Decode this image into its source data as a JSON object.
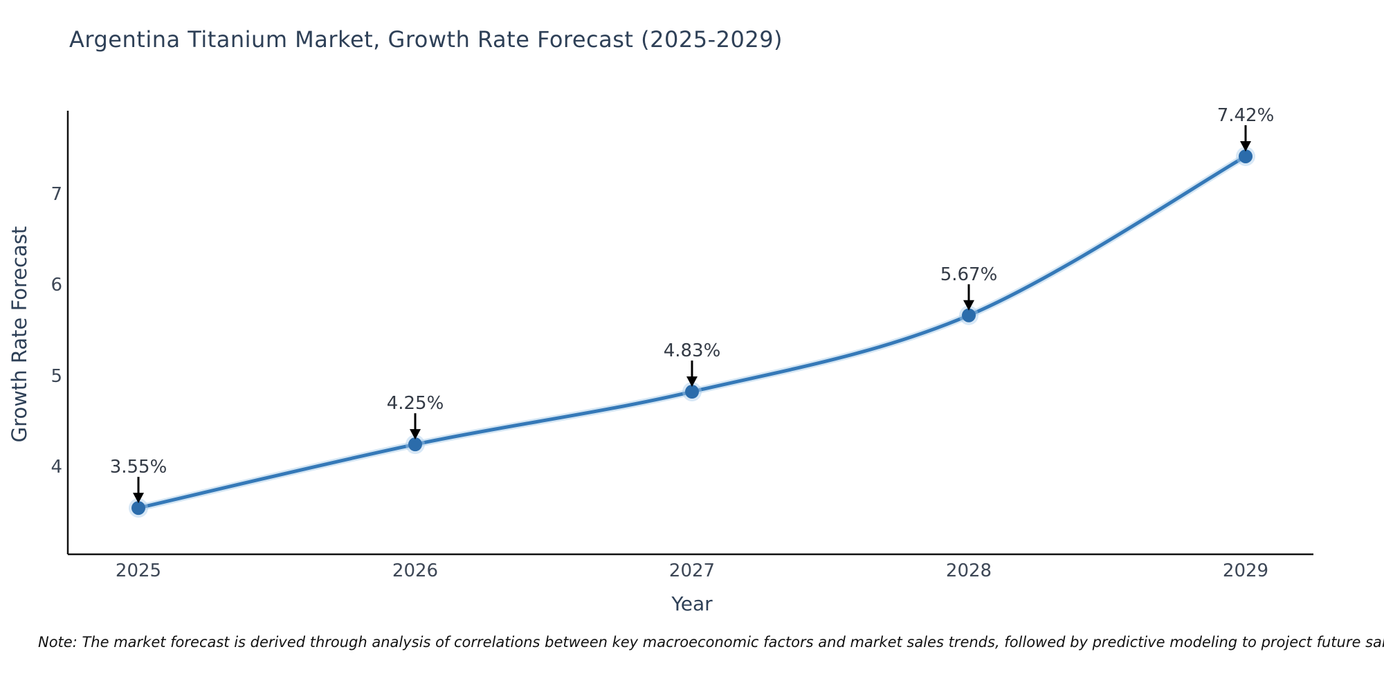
{
  "title": "Argentina Titanium Market, Growth Rate Forecast (2025-2029)",
  "note": "Note: The market forecast is derived through analysis of correlations between key macroeconomic factors and market sales trends, followed by predictive modeling to project future sales.",
  "chart_data": {
    "type": "line",
    "title": "Argentina Titanium Market, Growth Rate Forecast (2025-2029)",
    "xlabel": "Year",
    "ylabel": "Growth Rate Forecast",
    "x": [
      2025,
      2026,
      2027,
      2028,
      2029
    ],
    "x_tick_labels": [
      "2025",
      "2026",
      "2027",
      "2028",
      "2029"
    ],
    "values": [
      3.55,
      4.25,
      4.83,
      5.67,
      7.42
    ],
    "point_labels": [
      "3.55%",
      "4.25%",
      "4.83%",
      "5.67%",
      "7.42%"
    ],
    "y_ticks": [
      4,
      5,
      6,
      7
    ],
    "ylim": [
      3.05,
      7.95
    ],
    "grid": false,
    "legend": "none",
    "line_style": "smooth",
    "marker": "circle",
    "annotation_arrow": "down-black",
    "colors": {
      "line": "#3579b8",
      "line_halo": "#a9cdea",
      "marker": "#2b6cab",
      "arrow": "#000000",
      "title_text": "#2e4057",
      "tick_text": "#3d4756",
      "annotation_text": "#333a45",
      "spine": "#111111",
      "note_text": "#111111",
      "background": "#ffffff"
    }
  }
}
